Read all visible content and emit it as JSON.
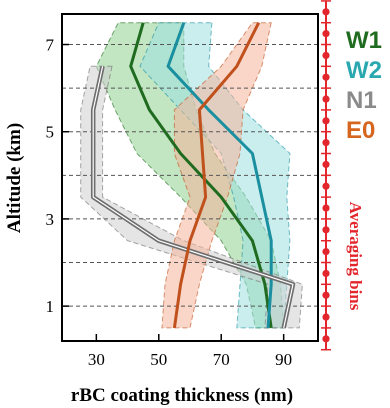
{
  "chart_data": {
    "type": "line",
    "xlabel": "rBC coating thickness (nm)",
    "ylabel": "Altitude (km)",
    "xlim": [
      19,
      101
    ],
    "ylim": [
      0.2,
      7.7
    ],
    "xticks": [
      30,
      50,
      70,
      90
    ],
    "xtick_labels": [
      "30",
      "50",
      "70",
      "90"
    ],
    "yticks": [
      1,
      3,
      5,
      7
    ],
    "ytick_labels": [
      "1",
      "3",
      "5",
      "7"
    ],
    "grid_y": [
      1,
      2,
      3,
      4,
      5,
      6,
      7
    ],
    "series": [
      {
        "name": "W1",
        "color": "#1f6b1f",
        "band_color": "#8fcf8f",
        "altitude": [
          7.5,
          6.5,
          5.5,
          4.5,
          3.5,
          2.5,
          1.5,
          0.5
        ],
        "mean": [
          45,
          41,
          47,
          57,
          70,
          80,
          84,
          86
        ],
        "lower": [
          37,
          30,
          36,
          43,
          57,
          70,
          78,
          81
        ],
        "upper": [
          58,
          58,
          62,
          68,
          78,
          86,
          89,
          90
        ]
      },
      {
        "name": "W2",
        "color": "#1a8fa0",
        "band_color": "#9ee0e0",
        "altitude": [
          7.5,
          6.5,
          5.5,
          4.5,
          3.5,
          2.5,
          1.5,
          0.5
        ],
        "mean": [
          58,
          53,
          66,
          80,
          83,
          86,
          86,
          85
        ],
        "lower": [
          50,
          44,
          57,
          70,
          74,
          77,
          76,
          75
        ],
        "upper": [
          67,
          66,
          77,
          92,
          91,
          92,
          91,
          90
        ]
      },
      {
        "name": "N1",
        "color": "#6e6e6e",
        "band_color": "#d0d0d0",
        "altitude": [
          6.5,
          5.5,
          4.5,
          3.5,
          2.5,
          1.5,
          0.5
        ],
        "mean": [
          32,
          29,
          29,
          29,
          50,
          93,
          90
        ],
        "lower": [
          28,
          25,
          25,
          25,
          40,
          85,
          84
        ],
        "upper": [
          35,
          32,
          32,
          32,
          58,
          96,
          95
        ]
      },
      {
        "name": "E0",
        "color": "#c0501c",
        "band_color": "#f4b49a",
        "altitude": [
          7.5,
          6.5,
          5.5,
          4.5,
          3.5,
          2.5,
          1.5,
          0.5
        ],
        "mean": [
          82,
          75,
          63,
          64,
          65,
          60,
          57,
          55
        ],
        "lower": [
          80,
          70,
          55,
          55,
          60,
          55,
          52,
          51
        ],
        "upper": [
          86,
          83,
          77,
          76,
          72,
          67,
          63,
          60
        ]
      }
    ],
    "legend": {
      "placement": "right",
      "entries": [
        {
          "label": "W1",
          "color": "#1f6b1f"
        },
        {
          "label": "W2",
          "color": "#2aa8b0"
        },
        {
          "label": "N1",
          "color": "#8a8a8a"
        },
        {
          "label": "E0",
          "color": "#d6651f"
        }
      ]
    },
    "averaging_bins": {
      "label": "Averaging bins",
      "color": "#e3262c",
      "bin_centers": [
        0.25,
        0.75,
        1.25,
        1.75,
        2.25,
        2.75,
        3.25,
        3.75,
        4.25,
        4.75,
        5.25,
        5.75,
        6.25,
        6.75,
        7.25,
        7.75
      ]
    }
  }
}
